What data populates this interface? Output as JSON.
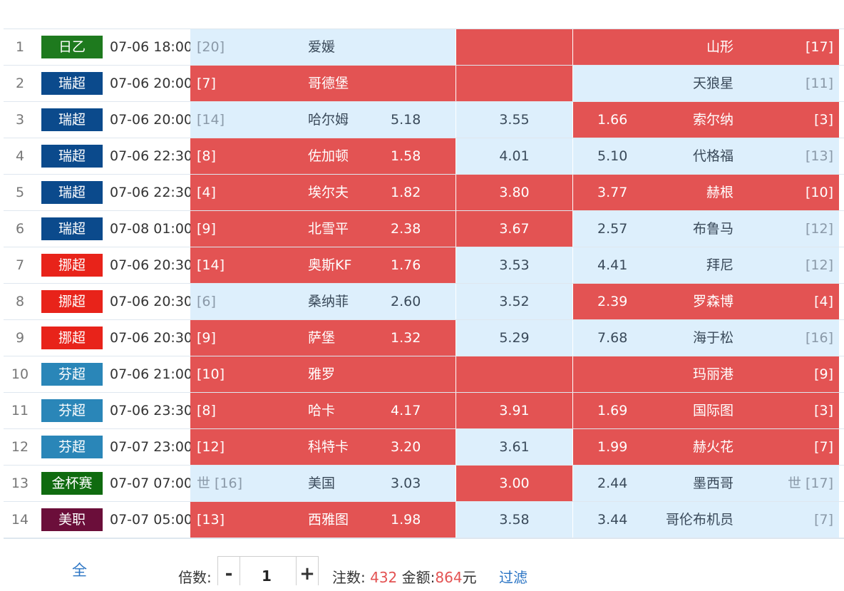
{
  "colors": {
    "hot_red": "#e35353",
    "cool_blue": "#ddeffc",
    "league_jp2": "#1e7a1e",
    "league_swe": "#0b4a8c",
    "league_nor": "#e8231a",
    "league_fin": "#2a86b8",
    "league_gold": "#0f6b0f",
    "league_mls": "#6b0e3a"
  },
  "matches": [
    {
      "idx": "1",
      "league": "日乙",
      "league_color": "#1e7a1e",
      "time": "07-06 18:00",
      "home_rank": "[20]",
      "home": "爱媛",
      "home_odds": "",
      "draw_odds": "",
      "away_odds": "",
      "away": "山形",
      "away_rank": "[17]",
      "home_sel": false,
      "draw_sel": true,
      "away_sel": true
    },
    {
      "idx": "2",
      "league": "瑞超",
      "league_color": "#0b4a8c",
      "time": "07-06 20:00",
      "home_rank": "[7]",
      "home": "哥德堡",
      "home_odds": "",
      "draw_odds": "",
      "away_odds": "",
      "away": "天狼星",
      "away_rank": "[11]",
      "home_sel": true,
      "draw_sel": true,
      "away_sel": false
    },
    {
      "idx": "3",
      "league": "瑞超",
      "league_color": "#0b4a8c",
      "time": "07-06 20:00",
      "home_rank": "[14]",
      "home": "哈尔姆",
      "home_odds": "5.18",
      "draw_odds": "3.55",
      "away_odds": "1.66",
      "away": "索尔纳",
      "away_rank": "[3]",
      "home_sel": false,
      "draw_sel": false,
      "away_sel": true
    },
    {
      "idx": "4",
      "league": "瑞超",
      "league_color": "#0b4a8c",
      "time": "07-06 22:30",
      "home_rank": "[8]",
      "home": "佐加顿",
      "home_odds": "1.58",
      "draw_odds": "4.01",
      "away_odds": "5.10",
      "away": "代格福",
      "away_rank": "[13]",
      "home_sel": true,
      "draw_sel": false,
      "away_sel": false
    },
    {
      "idx": "5",
      "league": "瑞超",
      "league_color": "#0b4a8c",
      "time": "07-06 22:30",
      "home_rank": "[4]",
      "home": "埃尔夫",
      "home_odds": "1.82",
      "draw_odds": "3.80",
      "away_odds": "3.77",
      "away": "赫根",
      "away_rank": "[10]",
      "home_sel": true,
      "draw_sel": true,
      "away_sel": true
    },
    {
      "idx": "6",
      "league": "瑞超",
      "league_color": "#0b4a8c",
      "time": "07-08 01:00",
      "home_rank": "[9]",
      "home": "北雪平",
      "home_odds": "2.38",
      "draw_odds": "3.67",
      "away_odds": "2.57",
      "away": "布鲁马",
      "away_rank": "[12]",
      "home_sel": true,
      "draw_sel": true,
      "away_sel": false
    },
    {
      "idx": "7",
      "league": "挪超",
      "league_color": "#e8231a",
      "time": "07-06 20:30",
      "home_rank": "[14]",
      "home": "奥斯KF",
      "home_odds": "1.76",
      "draw_odds": "3.53",
      "away_odds": "4.41",
      "away": "拜尼",
      "away_rank": "[12]",
      "home_sel": true,
      "draw_sel": false,
      "away_sel": false
    },
    {
      "idx": "8",
      "league": "挪超",
      "league_color": "#e8231a",
      "time": "07-06 20:30",
      "home_rank": "[6]",
      "home": "桑纳菲",
      "home_odds": "2.60",
      "draw_odds": "3.52",
      "away_odds": "2.39",
      "away": "罗森博",
      "away_rank": "[4]",
      "home_sel": false,
      "draw_sel": false,
      "away_sel": true
    },
    {
      "idx": "9",
      "league": "挪超",
      "league_color": "#e8231a",
      "time": "07-06 20:30",
      "home_rank": "[9]",
      "home": "萨堡",
      "home_odds": "1.32",
      "draw_odds": "5.29",
      "away_odds": "7.68",
      "away": "海于松",
      "away_rank": "[16]",
      "home_sel": true,
      "draw_sel": false,
      "away_sel": false
    },
    {
      "idx": "10",
      "league": "芬超",
      "league_color": "#2a86b8",
      "time": "07-06 21:00",
      "home_rank": "[10]",
      "home": "雅罗",
      "home_odds": "",
      "draw_odds": "",
      "away_odds": "",
      "away": "玛丽港",
      "away_rank": "[9]",
      "home_sel": true,
      "draw_sel": true,
      "away_sel": true
    },
    {
      "idx": "11",
      "league": "芬超",
      "league_color": "#2a86b8",
      "time": "07-06 23:30",
      "home_rank": "[8]",
      "home": "哈卡",
      "home_odds": "4.17",
      "draw_odds": "3.91",
      "away_odds": "1.69",
      "away": "国际图",
      "away_rank": "[3]",
      "home_sel": true,
      "draw_sel": true,
      "away_sel": true
    },
    {
      "idx": "12",
      "league": "芬超",
      "league_color": "#2a86b8",
      "time": "07-07 23:00",
      "home_rank": "[12]",
      "home": "科特卡",
      "home_odds": "3.20",
      "draw_odds": "3.61",
      "away_odds": "1.99",
      "away": "赫火花",
      "away_rank": "[7]",
      "home_sel": true,
      "draw_sel": false,
      "away_sel": true
    },
    {
      "idx": "13",
      "league": "金杯赛",
      "league_color": "#0f6b0f",
      "time": "07-07 07:00",
      "home_rank": "世 [16]",
      "home": "美国",
      "home_odds": "3.03",
      "draw_odds": "3.00",
      "away_odds": "2.44",
      "away": "墨西哥",
      "away_rank": "世 [17]",
      "home_sel": false,
      "draw_sel": true,
      "away_sel": false
    },
    {
      "idx": "14",
      "league": "美职",
      "league_color": "#6b0e3a",
      "time": "07-07 05:00",
      "home_rank": "[13]",
      "home": "西雅图",
      "home_odds": "1.98",
      "draw_odds": "3.58",
      "away_odds": "3.44",
      "away": "哥伦布机员",
      "away_rank": "[7]",
      "home_sel": true,
      "draw_sel": false,
      "away_sel": false
    }
  ],
  "footer": {
    "select_all": "全",
    "multiplier_label": "倍数:",
    "minus": "-",
    "plus": "+",
    "multiplier_value": "1",
    "bets_label": "注数:",
    "bets_value": "432",
    "amount_label": "金额:",
    "amount_value": "864",
    "amount_unit": "元",
    "filter": "过滤"
  }
}
